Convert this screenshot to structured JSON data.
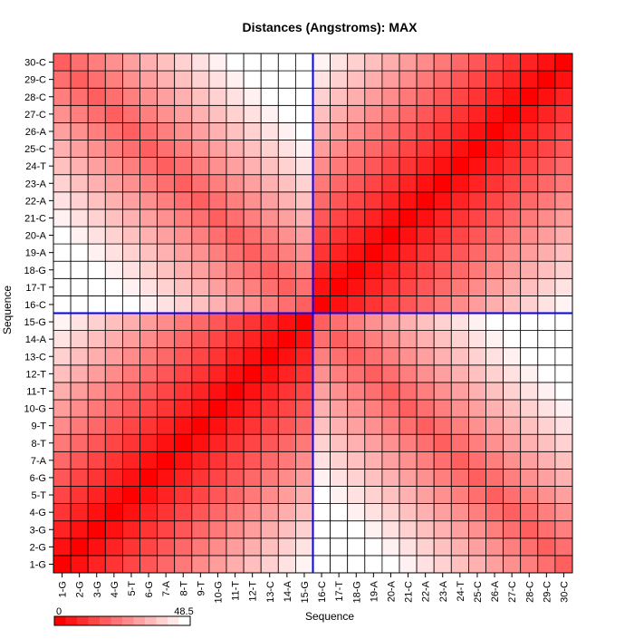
{
  "chart_data": {
    "type": "heatmap",
    "title": "Distances (Angstroms):  MAX",
    "xlabel": "Sequence",
    "ylabel": "Sequence",
    "labels": [
      "1-G",
      "2-G",
      "3-G",
      "4-G",
      "5-T",
      "6-G",
      "7-A",
      "8-T",
      "9-T",
      "10-G",
      "11-T",
      "12-T",
      "13-C",
      "14-A",
      "15-G",
      "16-C",
      "17-T",
      "18-G",
      "19-A",
      "20-A",
      "21-C",
      "22-A",
      "23-A",
      "24-T",
      "25-C",
      "26-A",
      "27-C",
      "28-C",
      "29-C",
      "30-C"
    ],
    "value_range": [
      0,
      48.5
    ],
    "colorbar": {
      "min_label": "0",
      "max_label": "48.5",
      "placement": "bottom-left"
    },
    "matrix_description": "symmetric; two blocks (1-15 and 16-30); value 0 on diagonal",
    "block_split_after": "15-G",
    "colors": {
      "low": "#ff0000",
      "high": "#ffffff",
      "divider": "#0000ff",
      "grid": "#000000"
    }
  }
}
